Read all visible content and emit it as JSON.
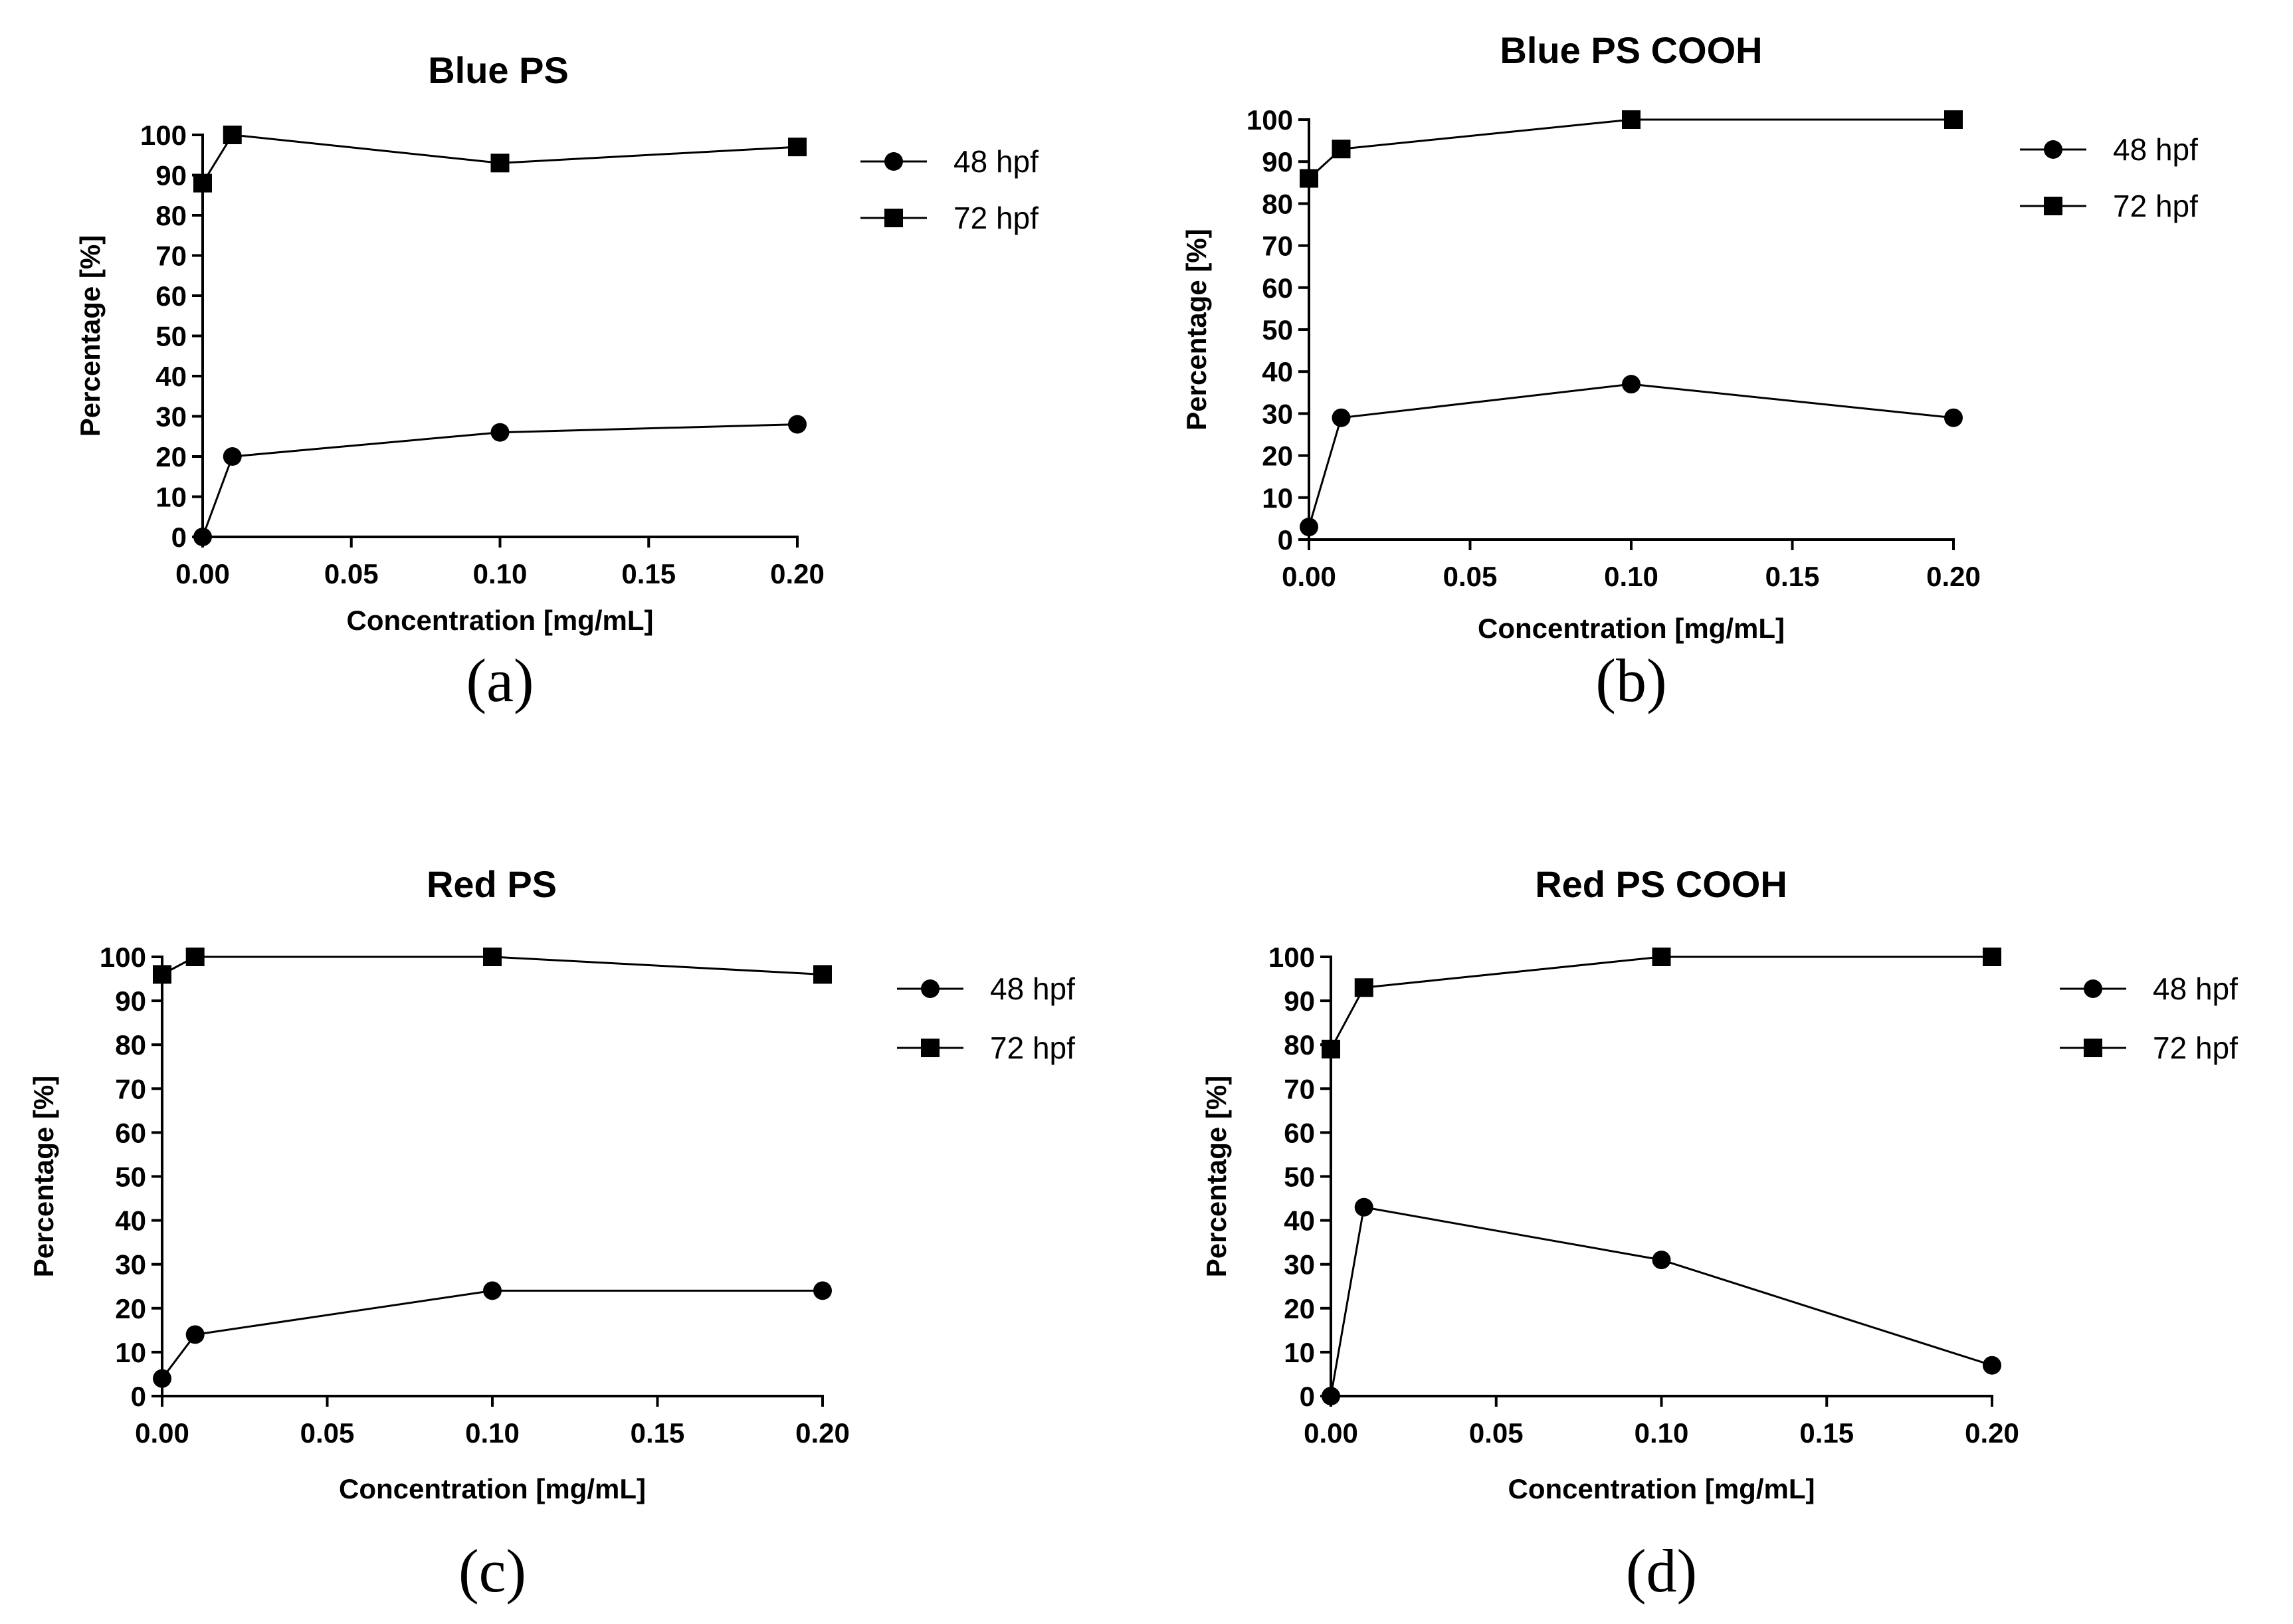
{
  "chart_data": [
    {
      "type": "line",
      "panel_label": "(a)",
      "panel_letter": "a",
      "title": "Blue PS",
      "xlabel": "Concentration [mg/mL]",
      "ylabel": "Percentage [%]",
      "xlim": [
        0,
        0.2
      ],
      "ylim": [
        0,
        100
      ],
      "xticks": [
        "0.00",
        "0.05",
        "0.10",
        "0.15",
        "0.20"
      ],
      "yticks": [
        "0",
        "10",
        "20",
        "30",
        "40",
        "50",
        "60",
        "70",
        "80",
        "90",
        "100"
      ],
      "x": [
        0,
        0.01,
        0.1,
        0.2
      ],
      "legend_position": "right",
      "series": [
        {
          "name": "48 hpf",
          "marker": "circle",
          "values": [
            0,
            20,
            26,
            28
          ]
        },
        {
          "name": "72 hpf",
          "marker": "square",
          "values": [
            88,
            100,
            93,
            97
          ]
        }
      ]
    },
    {
      "type": "line",
      "panel_label": "(b)",
      "panel_letter": "b",
      "title": "Blue PS COOH",
      "xlabel": "Concentration [mg/mL]",
      "ylabel": "Percentage [%]",
      "xlim": [
        0,
        0.2
      ],
      "ylim": [
        0,
        100
      ],
      "xticks": [
        "0.00",
        "0.05",
        "0.10",
        "0.15",
        "0.20"
      ],
      "yticks": [
        "0",
        "10",
        "20",
        "30",
        "40",
        "50",
        "60",
        "70",
        "80",
        "90",
        "100"
      ],
      "x": [
        0,
        0.01,
        0.1,
        0.2
      ],
      "legend_position": "right",
      "series": [
        {
          "name": "48 hpf",
          "marker": "circle",
          "values": [
            3,
            29,
            37,
            29
          ]
        },
        {
          "name": "72 hpf",
          "marker": "square",
          "values": [
            86,
            93,
            100,
            100
          ]
        }
      ]
    },
    {
      "type": "line",
      "panel_label": "(c)",
      "panel_letter": "c",
      "title": "Red PS",
      "xlabel": "Concentration [mg/mL]",
      "ylabel": "Percentage [%]",
      "xlim": [
        0,
        0.2
      ],
      "ylim": [
        0,
        100
      ],
      "xticks": [
        "0.00",
        "0.05",
        "0.10",
        "0.15",
        "0.20"
      ],
      "yticks": [
        "0",
        "10",
        "20",
        "30",
        "40",
        "50",
        "60",
        "70",
        "80",
        "90",
        "100"
      ],
      "x": [
        0,
        0.01,
        0.1,
        0.2
      ],
      "legend_position": "right",
      "series": [
        {
          "name": "48 hpf",
          "marker": "circle",
          "values": [
            4,
            14,
            24,
            24
          ]
        },
        {
          "name": "72 hpf",
          "marker": "square",
          "values": [
            96,
            100,
            100,
            96
          ]
        }
      ]
    },
    {
      "type": "line",
      "panel_label": "(d)",
      "panel_letter": "d",
      "title": "Red PS COOH",
      "xlabel": "Concentration [mg/mL]",
      "ylabel": "Percentage [%]",
      "xlim": [
        0,
        0.2
      ],
      "ylim": [
        0,
        100
      ],
      "xticks": [
        "0.00",
        "0.05",
        "0.10",
        "0.15",
        "0.20"
      ],
      "yticks": [
        "0",
        "10",
        "20",
        "30",
        "40",
        "50",
        "60",
        "70",
        "80",
        "90",
        "100"
      ],
      "x": [
        0,
        0.01,
        0.1,
        0.2
      ],
      "legend_position": "right",
      "series": [
        {
          "name": "48 hpf",
          "marker": "circle",
          "values": [
            0,
            43,
            31,
            7
          ]
        },
        {
          "name": "72 hpf",
          "marker": "square",
          "values": [
            79,
            93,
            100,
            100
          ]
        }
      ]
    }
  ]
}
